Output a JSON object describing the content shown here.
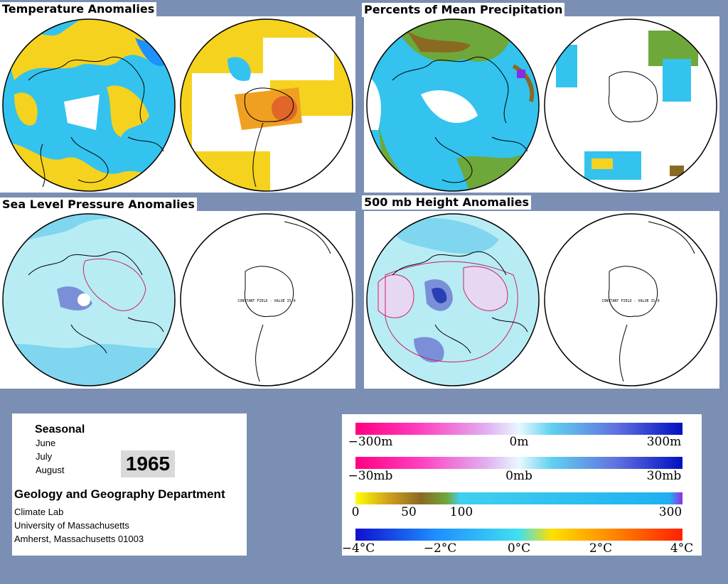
{
  "panels": {
    "temperature": {
      "title": "Temperature Anomalies"
    },
    "precipitation": {
      "title": "Percents of Mean Precipitation"
    },
    "slp": {
      "title": "Sea Level Pressure Anomalies",
      "sh_label": "CONSTANT FIELD - VALUE IS 0"
    },
    "height500": {
      "title": "500 mb Height Anomalies",
      "sh_label": "CONSTANT FIELD - VALUE IS 0"
    }
  },
  "info": {
    "period": "Seasonal",
    "months": [
      "June",
      "July",
      "August"
    ],
    "year": "1965",
    "department": "Geology and Geography Department",
    "lines": [
      "Climate Lab",
      "University of Massachusetts",
      "Amherst, Massachusetts 01003"
    ]
  },
  "legend": {
    "height": {
      "labels": [
        "−300m",
        "0m",
        "300m"
      ]
    },
    "pressure": {
      "labels": [
        "−30mb",
        "0mb",
        "30mb"
      ]
    },
    "precip": {
      "labels": [
        "0",
        "50",
        "100",
        "300"
      ]
    },
    "temp": {
      "labels": [
        "−4°C",
        "−2°C",
        "0°C",
        "2°C",
        "4°C"
      ]
    }
  },
  "colors": {
    "background": "#7b8fb4",
    "warm": "#f5d21e",
    "cool": "#33c3ee",
    "precip_green": "#6ea83a",
    "precip_brown": "#8a6a22",
    "positive_contour": "#cc2266",
    "negative_fill": "#7b8fd8"
  }
}
